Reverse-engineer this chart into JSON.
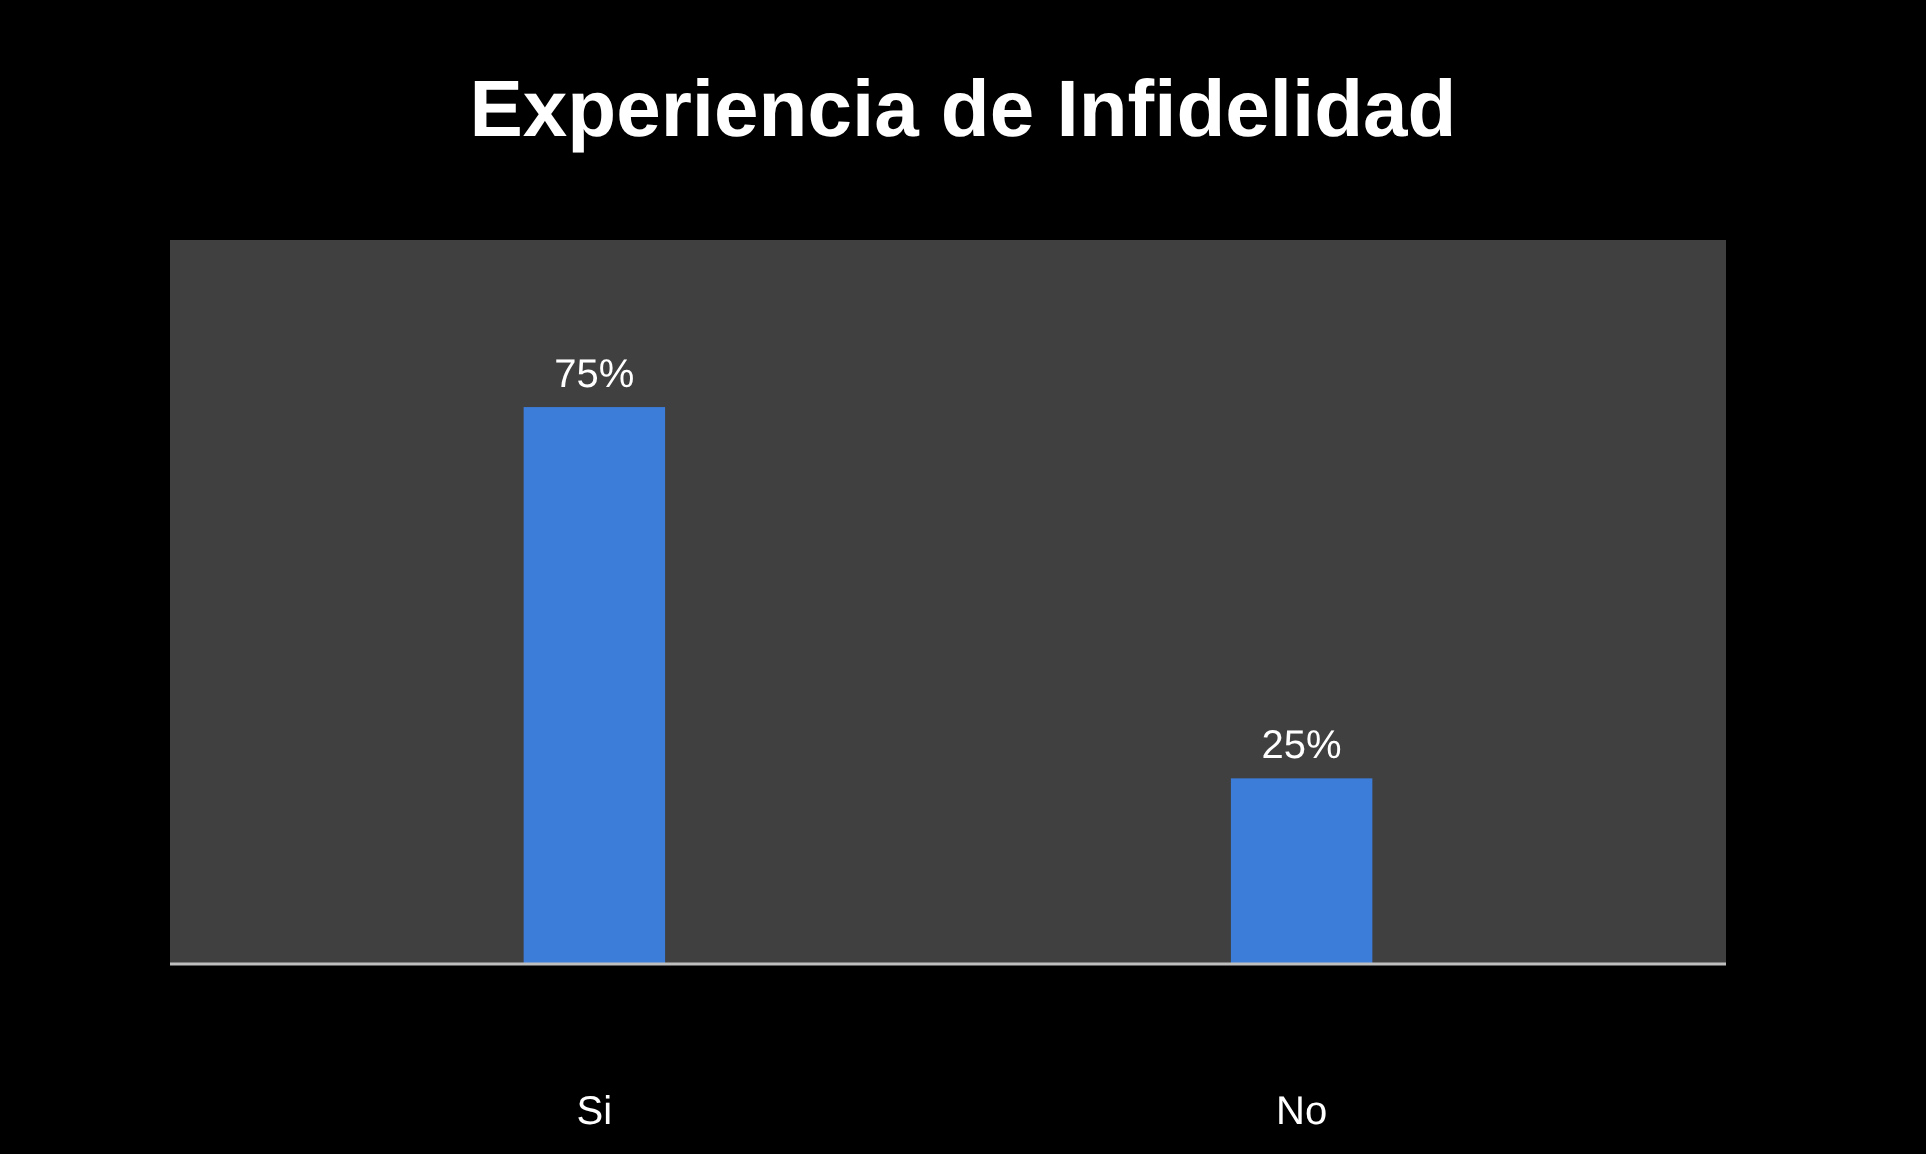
{
  "chart_data": {
    "type": "bar",
    "title": "Experiencia de Infidelidad",
    "categories": [
      "Si",
      "No"
    ],
    "values": [
      75,
      25
    ],
    "value_labels": [
      "75%",
      "25%"
    ],
    "color": "#3c7dd9"
  }
}
